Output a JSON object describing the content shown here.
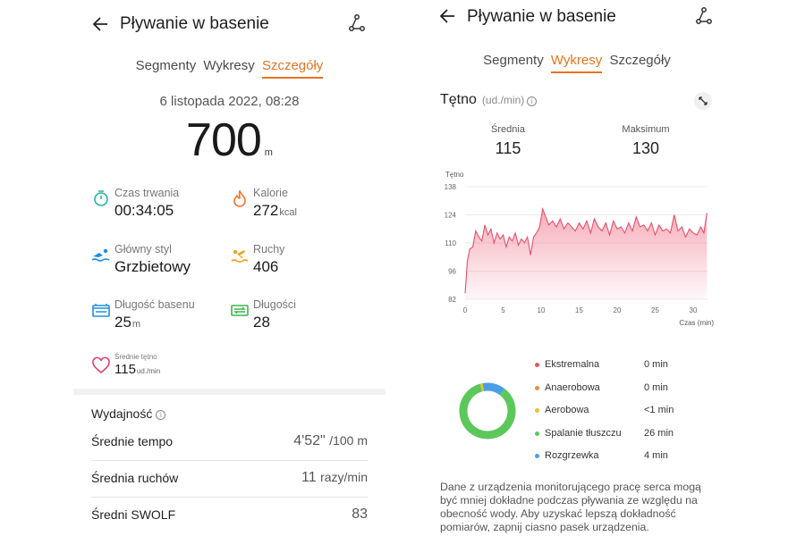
{
  "left": {
    "title": "Pływanie w basenie",
    "tabs": [
      "Segmenty",
      "Wykresy",
      "Szczegóły"
    ],
    "active_tab": 2,
    "date": "6 listopada 2022, 08:28",
    "distance": {
      "value": "700",
      "unit": "m"
    },
    "stats": {
      "duration": {
        "label": "Czas trwania",
        "value": "00:34:05"
      },
      "calories": {
        "label": "Kalorie",
        "value": "272",
        "unit": "kcal"
      },
      "style": {
        "label": "Główny styl",
        "value": "Grzbietowy"
      },
      "strokes": {
        "label": "Ruchy",
        "value": "406"
      },
      "pool": {
        "label": "Długość basenu",
        "value": "25",
        "unit": "m"
      },
      "laps": {
        "label": "Długości",
        "value": "28"
      },
      "avg_hr": {
        "label": "Średnie tętno",
        "value": "115",
        "unit": "ud./min"
      }
    },
    "performance": {
      "title": "Wydajność",
      "rows": [
        {
          "label": "Średnie tempo",
          "value": "4'52\"",
          "unit": "/100 m"
        },
        {
          "label": "Średnia ruchów",
          "value": "11",
          "unit": "razy/min"
        },
        {
          "label": "Średni SWOLF",
          "value": "83",
          "unit": ""
        }
      ]
    }
  },
  "right": {
    "title": "Pływanie w basenie",
    "tabs": [
      "Segmenty",
      "Wykresy",
      "Szczegóły"
    ],
    "active_tab": 1,
    "hr_title": "Tętno",
    "hr_unit": "(ud./min)",
    "summary": {
      "avg_label": "Średnia",
      "avg_value": "115",
      "max_label": "Maksimum",
      "max_value": "130"
    },
    "zones": [
      {
        "label": "Ekstremalna",
        "value": "0 min",
        "color": "#ee5555"
      },
      {
        "label": "Anaerobowa",
        "value": "0 min",
        "color": "#f28a3c"
      },
      {
        "label": "Aerobowa",
        "value": "<1 min",
        "color": "#e9c13a"
      },
      {
        "label": "Spalanie tłuszczu",
        "value": "26 min",
        "color": "#5cc85c"
      },
      {
        "label": "Rozgrzewka",
        "value": "4 min",
        "color": "#4a9ee8"
      }
    ],
    "disclaimer": "Dane z urządzenia monitorującego pracę serca mogą być mniej dokładne podczas pływania ze względu na obecność wody. Aby uzyskać lepszą dokładność pomiarów, zapnij ciasno pasek urządzenia."
  },
  "chart_data": {
    "type": "area",
    "title": "",
    "ylabel": "Tętno",
    "xlabel": "Czas (min)",
    "ylim": [
      82,
      138
    ],
    "xlim": [
      0,
      32
    ],
    "yticks": [
      82,
      96,
      110,
      124,
      138
    ],
    "xticks": [
      0,
      5,
      10,
      15,
      20,
      25,
      30
    ],
    "grid": "horizontal",
    "color": "#f06a80",
    "x": [
      0,
      0.3,
      0.6,
      1,
      1.4,
      1.8,
      2.2,
      2.6,
      3,
      3.4,
      3.8,
      4.2,
      4.6,
      5,
      5.4,
      5.8,
      6.2,
      6.6,
      7,
      7.4,
      7.8,
      8.2,
      8.6,
      9,
      9.4,
      9.8,
      10.2,
      10.6,
      11,
      11.5,
      12,
      12.5,
      13,
      13.5,
      14,
      14.5,
      15,
      15.5,
      16,
      16.5,
      17,
      17.5,
      18,
      18.5,
      19,
      19.5,
      20,
      20.5,
      21,
      21.5,
      22,
      22.5,
      23,
      23.5,
      24,
      24.5,
      25,
      25.5,
      26,
      26.5,
      27,
      27.5,
      28,
      28.5,
      29,
      29.5,
      30,
      30.5,
      31,
      31.4,
      31.8
    ],
    "values": [
      85,
      101,
      107,
      108,
      116,
      113,
      111,
      119,
      114,
      117,
      110,
      115,
      112,
      114,
      108,
      113,
      111,
      115,
      109,
      112,
      110,
      113,
      104,
      113,
      115,
      118,
      127,
      123,
      119,
      121,
      118,
      122,
      117,
      120,
      118,
      116,
      120,
      117,
      121,
      115,
      122,
      118,
      116,
      120,
      114,
      121,
      117,
      118,
      115,
      120,
      116,
      123,
      118,
      119,
      116,
      120,
      114,
      119,
      116,
      117,
      115,
      124,
      116,
      118,
      113,
      117,
      115,
      114,
      118,
      115,
      125
    ]
  }
}
